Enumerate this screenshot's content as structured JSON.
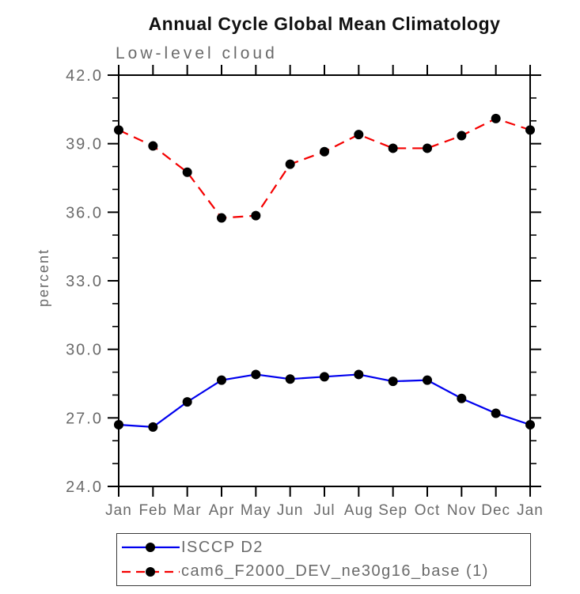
{
  "chart": {
    "title": "Annual Cycle Global Mean Climatology",
    "subtitle": "Low-level cloud",
    "ylabel": "percent"
  },
  "chart_data": {
    "type": "line",
    "title": "Annual Cycle Global Mean Climatology",
    "subtitle": "Low-level cloud",
    "xlabel": "",
    "ylabel": "percent",
    "ylim": [
      24.0,
      42.0
    ],
    "ytick_interval": 3.0,
    "yminor_interval": 1.0,
    "yticks": [
      24.0,
      27.0,
      30.0,
      33.0,
      36.0,
      39.0,
      42.0
    ],
    "categories": [
      "Jan",
      "Feb",
      "Mar",
      "Apr",
      "May",
      "Jun",
      "Jul",
      "Aug",
      "Sep",
      "Oct",
      "Nov",
      "Dec",
      "Jan"
    ],
    "series": [
      {
        "name": "ISCCP D2",
        "color": "#0000ee",
        "line_style": "solid",
        "marker": "filled-circle",
        "marker_color": "#000000",
        "values": [
          26.7,
          26.6,
          27.7,
          28.65,
          28.9,
          28.7,
          28.8,
          28.9,
          28.6,
          28.65,
          27.85,
          27.2,
          26.7
        ]
      },
      {
        "name": "cam6_F2000_DEV_ne30g16_base (1)",
        "color": "#f40000",
        "line_style": "dashed",
        "marker": "filled-circle",
        "marker_color": "#000000",
        "values": [
          39.6,
          38.9,
          37.75,
          35.75,
          35.85,
          38.1,
          38.65,
          39.4,
          38.8,
          38.8,
          39.35,
          40.1,
          39.6
        ]
      }
    ],
    "legend_position": "bottom-left-box",
    "grid": false,
    "axis_color": "#000000",
    "label_color": "#6a6a6a"
  }
}
